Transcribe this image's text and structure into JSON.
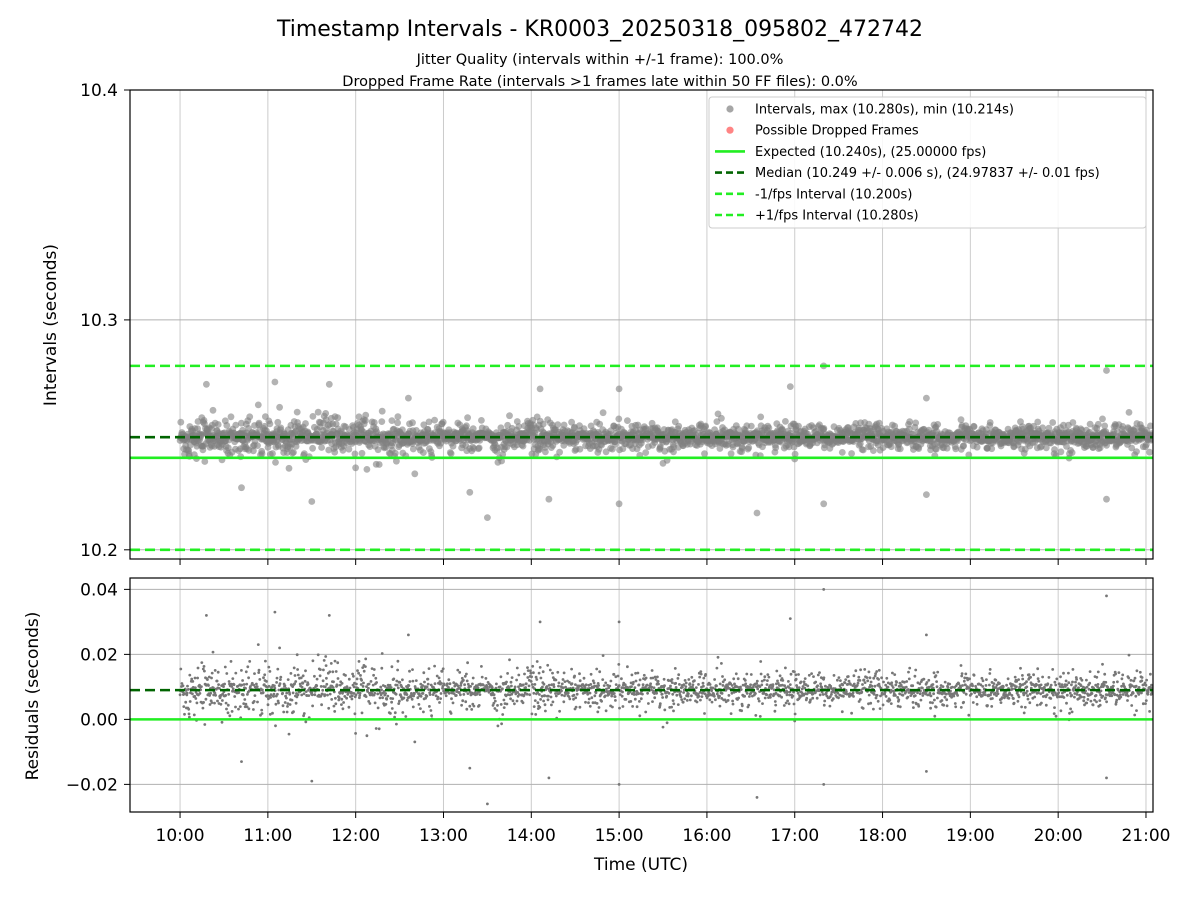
{
  "chart_data": [
    {
      "type": "scatter",
      "title": "Timestamp Intervals - KR0003_20250318_095802_472742",
      "subtitle_lines": [
        "Jitter Quality (intervals within +/-1 frame): 100.0%",
        "Dropped Frame Rate (intervals >1 frames late within 50 FF files): 0.0%"
      ],
      "xlabel": "",
      "ylabel": "Intervals (seconds)",
      "xlim_hours": [
        9.43,
        21.08
      ],
      "ylim": [
        10.196,
        10.4
      ],
      "yticks": [
        10.2,
        10.3,
        10.4
      ],
      "ytick_labels": [
        "10.2",
        "10.3",
        "10.4"
      ],
      "xticks": [
        10,
        11,
        12,
        13,
        14,
        15,
        16,
        17,
        18,
        19,
        20,
        21
      ],
      "xtick_labels": [
        "10:00",
        "11:00",
        "12:00",
        "13:00",
        "14:00",
        "15:00",
        "16:00",
        "17:00",
        "18:00",
        "19:00",
        "20:00",
        "21:00"
      ],
      "grid": true,
      "legend_position": "top-right",
      "data_range": {
        "start_hour": 10.0,
        "end_hour": 21.08
      },
      "median": 10.249,
      "expected": 10.24,
      "lower_interval": 10.2,
      "upper_interval": 10.28,
      "legend": [
        {
          "label": "Intervals, max (10.280s), min (10.214s)",
          "marker": "dot",
          "color": "#808080"
        },
        {
          "label": "Possible Dropped Frames",
          "marker": "dot",
          "color": "#ff5050"
        },
        {
          "label": "Expected (10.240s), (25.00000 fps)",
          "marker": "line",
          "color": "#22ee22"
        },
        {
          "label": "Median (10.249 +/- 0.006 s), (24.97837 +/- 0.01 fps)",
          "marker": "dashed",
          "color": "#006400"
        },
        {
          "label": "-1/fps Interval (10.200s)",
          "marker": "dashed",
          "color": "#22ee22"
        },
        {
          "label": "+1/fps Interval (10.280s)",
          "marker": "dashed",
          "color": "#22ee22"
        }
      ],
      "outliers": [
        {
          "x": 10.3,
          "y": 10.272
        },
        {
          "x": 11.08,
          "y": 10.273
        },
        {
          "x": 11.7,
          "y": 10.272
        },
        {
          "x": 12.6,
          "y": 10.266
        },
        {
          "x": 14.1,
          "y": 10.27
        },
        {
          "x": 15.0,
          "y": 10.27
        },
        {
          "x": 16.95,
          "y": 10.271
        },
        {
          "x": 17.33,
          "y": 10.28
        },
        {
          "x": 18.5,
          "y": 10.266
        },
        {
          "x": 20.55,
          "y": 10.278
        },
        {
          "x": 13.5,
          "y": 10.214
        },
        {
          "x": 16.57,
          "y": 10.216
        },
        {
          "x": 17.33,
          "y": 10.22
        },
        {
          "x": 15.0,
          "y": 10.22
        },
        {
          "x": 20.55,
          "y": 10.222
        },
        {
          "x": 11.5,
          "y": 10.221
        },
        {
          "x": 13.3,
          "y": 10.225
        },
        {
          "x": 14.2,
          "y": 10.222
        },
        {
          "x": 18.5,
          "y": 10.224
        },
        {
          "x": 10.7,
          "y": 10.227
        }
      ],
      "colors": {
        "points": "#808080",
        "expected": "#22ee22",
        "median": "#006400",
        "interval": "#22ee22"
      }
    },
    {
      "type": "scatter",
      "xlabel": "Time (UTC)",
      "ylabel": "Residuals (seconds)",
      "xlim_hours": [
        9.43,
        21.08
      ],
      "ylim": [
        -0.0285,
        0.0435
      ],
      "yticks": [
        -0.02,
        0.0,
        0.02,
        0.04
      ],
      "ytick_labels": [
        "−0.02",
        "0.00",
        "0.02",
        "0.04"
      ],
      "xticks": [
        10,
        11,
        12,
        13,
        14,
        15,
        16,
        17,
        18,
        19,
        20,
        21
      ],
      "xtick_labels": [
        "10:00",
        "11:00",
        "12:00",
        "13:00",
        "14:00",
        "15:00",
        "16:00",
        "17:00",
        "18:00",
        "19:00",
        "20:00",
        "21:00"
      ],
      "grid": true,
      "median_residual": 0.009,
      "expected_residual": 0.0,
      "outliers": [
        {
          "x": 17.33,
          "y": 0.04
        },
        {
          "x": 20.55,
          "y": 0.038
        },
        {
          "x": 11.1,
          "y": 0.033
        },
        {
          "x": 10.3,
          "y": 0.032
        },
        {
          "x": 11.85,
          "y": 0.033
        },
        {
          "x": 16.57,
          "y": 0.031
        },
        {
          "x": 16.95,
          "y": 0.031
        },
        {
          "x": 13.5,
          "y": -0.026
        },
        {
          "x": 16.57,
          "y": -0.024
        },
        {
          "x": 17.33,
          "y": -0.02
        },
        {
          "x": 20.55,
          "y": -0.019
        },
        {
          "x": 18.5,
          "y": -0.016
        },
        {
          "x": 11.5,
          "y": -0.02
        },
        {
          "x": 13.3,
          "y": -0.017
        },
        {
          "x": 10.8,
          "y": -0.014
        }
      ],
      "colors": {
        "points": "#777777",
        "expected": "#22ee22",
        "median": "#006400"
      }
    }
  ]
}
